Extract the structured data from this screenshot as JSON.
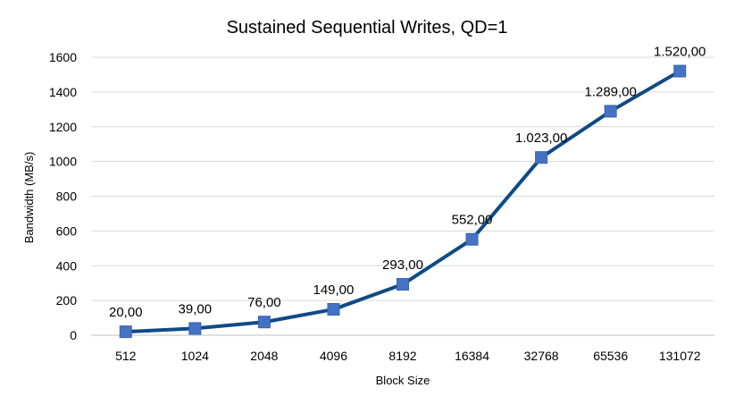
{
  "chart_data": {
    "type": "line",
    "title": "Sustained Sequential Writes, QD=1",
    "xlabel": "Block Size",
    "ylabel": "Bandwidth (MB/s)",
    "categories": [
      "512",
      "1024",
      "2048",
      "4096",
      "8192",
      "16384",
      "32768",
      "65536",
      "131072"
    ],
    "series": [
      {
        "values": [
          20,
          39,
          76,
          149,
          293,
          552,
          1023,
          1289,
          1520
        ],
        "data_labels": [
          "20,00",
          "39,00",
          "76,00",
          "149,00",
          "293,00",
          "552,00",
          "1.023,00",
          "1.289,00",
          "1.520,00"
        ],
        "line_color": "#0f4a85",
        "marker_color": "#4472c4",
        "marker": "square"
      }
    ],
    "ylim": [
      0,
      1600
    ],
    "yticks": [
      0,
      200,
      400,
      600,
      800,
      1000,
      1200,
      1400,
      1600
    ],
    "grid": true,
    "legend": "none"
  }
}
